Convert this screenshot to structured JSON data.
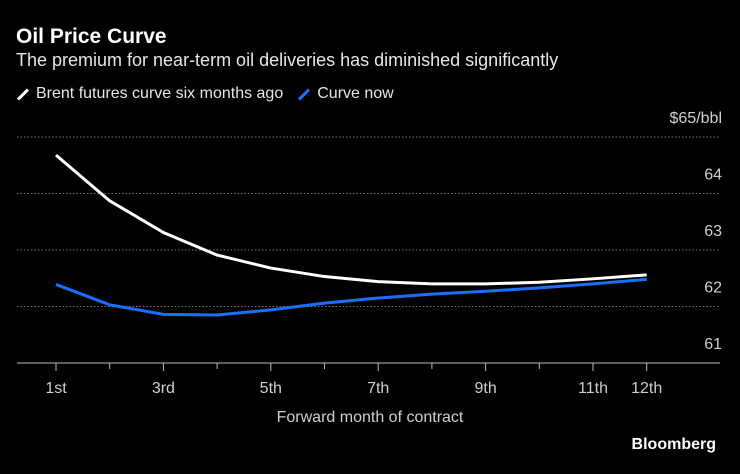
{
  "chart_data": {
    "type": "line",
    "title": "Oil Price Curve",
    "subtitle": "The premium for near-term oil deliveries has diminished significantly",
    "xlabel": "Forward month of contract",
    "ylabel": "$65/bbl",
    "x": [
      1,
      2,
      3,
      4,
      5,
      6,
      7,
      8,
      9,
      10,
      11,
      12
    ],
    "x_tick_labels": [
      {
        "x": 1,
        "label": "1st"
      },
      {
        "x": 3,
        "label": "3rd"
      },
      {
        "x": 5,
        "label": "5th"
      },
      {
        "x": 7,
        "label": "7th"
      },
      {
        "x": 9,
        "label": "9th"
      },
      {
        "x": 11,
        "label": "11th"
      },
      {
        "x": 12,
        "label": "12th"
      }
    ],
    "y_ticks": [
      {
        "value": 65,
        "label": "$65/bbl"
      },
      {
        "value": 64,
        "label": "64"
      },
      {
        "value": 63,
        "label": "63"
      },
      {
        "value": 62,
        "label": "62"
      },
      {
        "value": 61,
        "label": "61"
      }
    ],
    "ylim": [
      61,
      65
    ],
    "grid": true,
    "legend_position": "top-left",
    "series": [
      {
        "name": "Brent futures curve six months ago",
        "color": "#ffffff",
        "values": [
          64.68,
          63.87,
          63.31,
          62.91,
          62.68,
          62.53,
          62.44,
          62.4,
          62.4,
          62.43,
          62.49,
          62.56
        ]
      },
      {
        "name": "Curve now",
        "color": "#1a6fff",
        "values": [
          62.39,
          62.03,
          61.86,
          61.85,
          61.94,
          62.06,
          62.15,
          62.22,
          62.27,
          62.33,
          62.4,
          62.48
        ]
      }
    ]
  },
  "source": "Bloomberg"
}
